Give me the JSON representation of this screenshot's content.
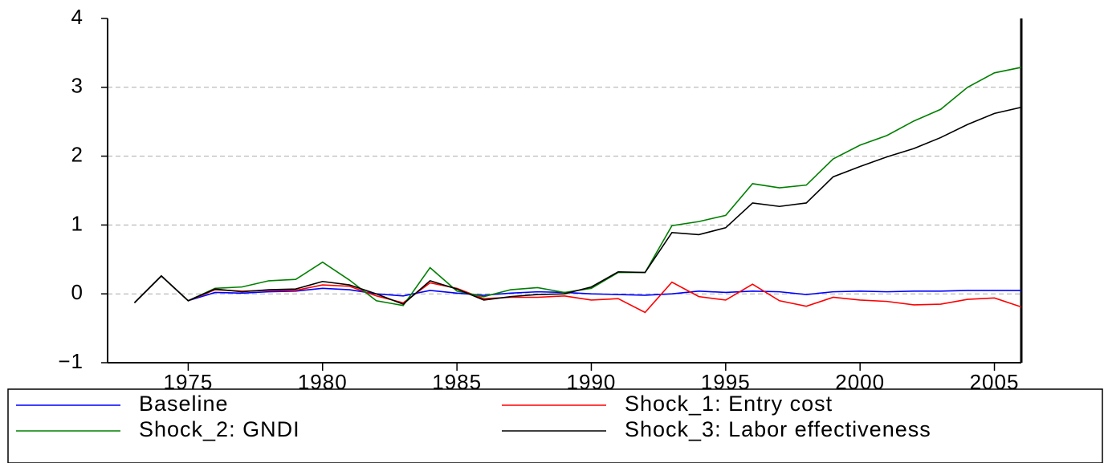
{
  "chart_data": {
    "type": "line",
    "x": [
      1973,
      1974,
      1975,
      1976,
      1977,
      1978,
      1979,
      1980,
      1981,
      1982,
      1983,
      1984,
      1985,
      1986,
      1987,
      1988,
      1989,
      1990,
      1991,
      1992,
      1993,
      1994,
      1995,
      1996,
      1997,
      1998,
      1999,
      2000,
      2001,
      2002,
      2003,
      2004,
      2005,
      2006
    ],
    "series": [
      {
        "name": "Baseline",
        "color": "#0000ff",
        "values": [
          -0.13,
          0.26,
          -0.1,
          0.02,
          0.01,
          0.03,
          0.04,
          0.08,
          0.06,
          0.0,
          -0.03,
          0.05,
          0.01,
          -0.02,
          0.01,
          0.03,
          0.02,
          0.0,
          -0.01,
          -0.02,
          0.0,
          0.04,
          0.02,
          0.04,
          0.03,
          -0.01,
          0.03,
          0.04,
          0.03,
          0.04,
          0.04,
          0.05,
          0.05,
          0.05
        ]
      },
      {
        "name": "Shock_1: Entry cost",
        "color": "#ff0000",
        "values": [
          -0.13,
          0.26,
          -0.1,
          0.06,
          0.04,
          0.05,
          0.05,
          0.13,
          0.11,
          -0.03,
          -0.13,
          0.16,
          0.08,
          -0.07,
          -0.05,
          -0.05,
          -0.03,
          -0.09,
          -0.07,
          -0.27,
          0.17,
          -0.04,
          -0.09,
          0.14,
          -0.1,
          -0.18,
          -0.05,
          -0.09,
          -0.11,
          -0.16,
          -0.15,
          -0.08,
          -0.06,
          -0.19
        ]
      },
      {
        "name": "Shock_2: GNDI",
        "color": "#008000",
        "values": [
          -0.13,
          0.26,
          -0.1,
          0.08,
          0.1,
          0.19,
          0.21,
          0.46,
          0.2,
          -0.1,
          -0.17,
          0.38,
          0.04,
          -0.04,
          0.06,
          0.09,
          0.02,
          0.08,
          0.31,
          0.31,
          0.99,
          1.05,
          1.14,
          1.6,
          1.54,
          1.58,
          1.96,
          2.16,
          2.3,
          2.51,
          2.68,
          3.0,
          3.21,
          3.29
        ]
      },
      {
        "name": "Shock_3: Labor effectiveness",
        "color": "#000000",
        "values": [
          -0.13,
          0.26,
          -0.1,
          0.07,
          0.03,
          0.06,
          0.07,
          0.18,
          0.13,
          0.0,
          -0.15,
          0.19,
          0.07,
          -0.09,
          -0.04,
          -0.01,
          0.0,
          0.1,
          0.32,
          0.31,
          0.89,
          0.86,
          0.96,
          1.32,
          1.27,
          1.32,
          1.7,
          1.85,
          1.99,
          2.11,
          2.27,
          2.46,
          2.62,
          2.71
        ]
      }
    ],
    "xlim": [
      1972,
      2006
    ],
    "xticks": [
      1975,
      1980,
      1985,
      1990,
      1995,
      2000,
      2005
    ],
    "ylim": [
      -1,
      4
    ],
    "yticks": [
      {
        "value": -1,
        "label": "−1"
      },
      0,
      1,
      2,
      3,
      4
    ],
    "grid": true
  }
}
